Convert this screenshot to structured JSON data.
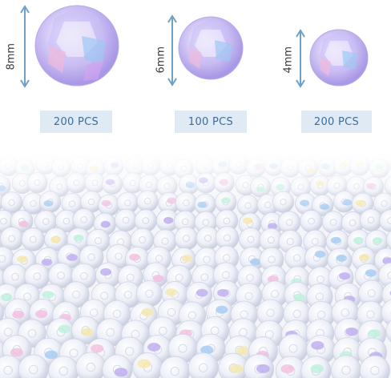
{
  "sizes": [
    {
      "dimension": "8mm",
      "quantity": "200 PCS"
    },
    {
      "dimension": "6mm",
      "quantity": "100 PCS"
    },
    {
      "dimension": "4mm",
      "quantity": "200 PCS"
    }
  ],
  "colors": {
    "arrow": "#6ea0c8",
    "pill_background": "#dfeaf5",
    "pill_text": "#3c6e9c",
    "bead_purple": "#b9a6ef",
    "bead_blue": "#9fc8f2",
    "bead_pink": "#f1b9dc",
    "bead_clear": "#f3f5fb"
  },
  "icons": [
    "bead-8mm-icon",
    "bead-6mm-icon",
    "bead-4mm-icon"
  ]
}
